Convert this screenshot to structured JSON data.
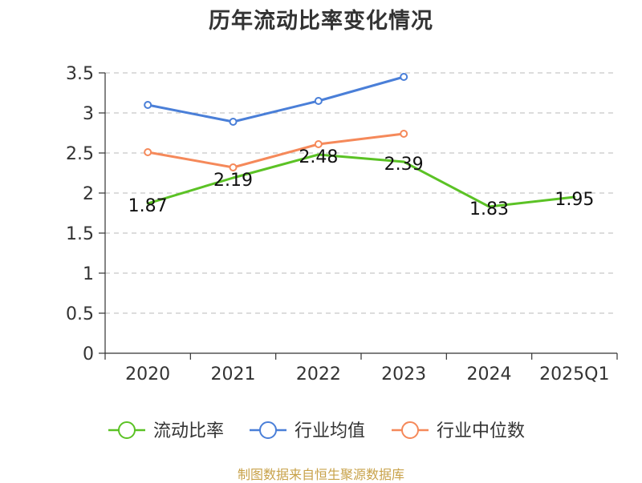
{
  "chart_data": {
    "type": "line",
    "title": "历年流动比率变化情况",
    "categories": [
      "2020",
      "2021",
      "2022",
      "2023",
      "2024",
      "2025Q1"
    ],
    "ylim": [
      0,
      3.5
    ],
    "yticks": [
      "0",
      "0.5",
      "1",
      "1.5",
      "2",
      "2.5",
      "3",
      "3.5"
    ],
    "grid": true,
    "legend_position": "bottom",
    "series": [
      {
        "name": "流动比率",
        "color": "#5bc225",
        "values": [
          1.87,
          2.19,
          2.48,
          2.39,
          1.83,
          1.95
        ],
        "labels": [
          "1.87",
          "2.19",
          "2.48",
          "2.39",
          "1.83",
          "1.95"
        ],
        "show_markers": false
      },
      {
        "name": "行业均值",
        "color": "#4a7fd8",
        "values": [
          3.1,
          2.89,
          3.15,
          3.45,
          null,
          null
        ],
        "show_markers": true
      },
      {
        "name": "行业中位数",
        "color": "#f5895a",
        "values": [
          2.51,
          2.32,
          2.61,
          2.74,
          null,
          null
        ],
        "show_markers": true
      }
    ]
  },
  "source": "制图数据来自恒生聚源数据库"
}
